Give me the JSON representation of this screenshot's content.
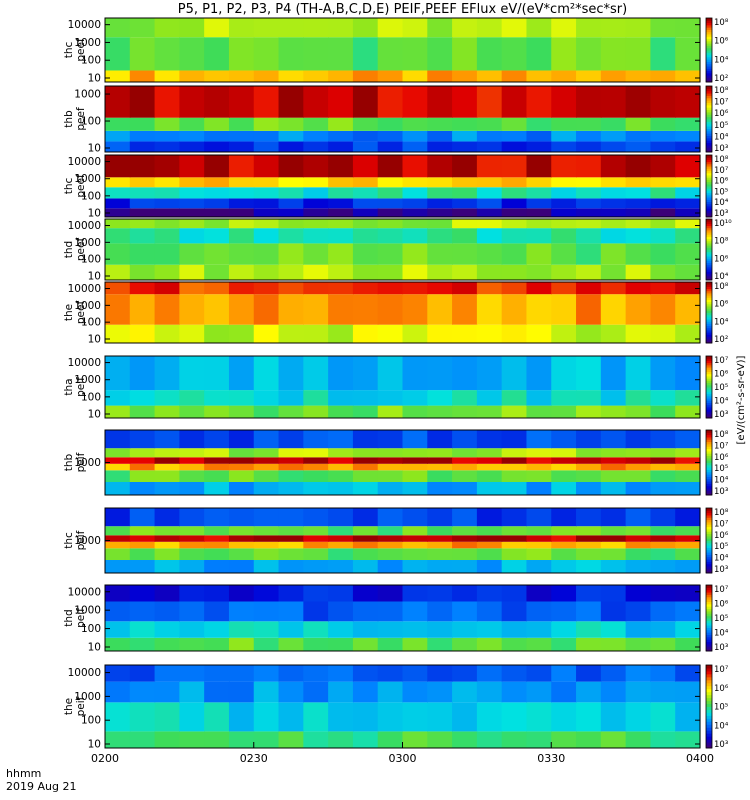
{
  "title": "P5, P1, P2, P3, P4 (TH-A,B,C,D,E) PEIF,PEEF EFlux eV/(eV*cm²*sec*sr)",
  "colorbar_unit_label": "[eV/(cm²-s-sr-eV)]",
  "footer": {
    "line1": "hhmm",
    "line2": "2019 Aug 21"
  },
  "chart_data": {
    "type": "heatmap",
    "colormap": "rainbow (purple-blue-cyan-green-yellow-red)",
    "x_axis": {
      "label": "hhmm",
      "date": "2019 Aug 21",
      "start": "0200",
      "end": "0400",
      "ticks": [
        "0200",
        "0230",
        "0300",
        "0330",
        "0400"
      ]
    },
    "panels": [
      {
        "name": "thc peef",
        "probe": "P2",
        "instrument": "peef",
        "yscale": "log",
        "yticks": [
          "10",
          "100",
          "1000",
          "10000"
        ],
        "cb_ticks": [
          "10²",
          "10⁴",
          "10⁶",
          "10⁸"
        ],
        "bands": [
          [
            0.0,
            0.18,
            0.78
          ],
          [
            0.18,
            0.7,
            0.55
          ],
          [
            0.7,
            1.0,
            0.62
          ]
        ]
      },
      {
        "name": "thb peef",
        "probe": "P1",
        "instrument": "peef",
        "yscale": "log",
        "yticks": [
          "10",
          "100",
          "1000"
        ],
        "cb_ticks": [
          "10³",
          "10⁴",
          "10⁵",
          "10⁶",
          "10⁷",
          "10⁸"
        ],
        "bands": [
          [
            0.0,
            0.16,
            0.2
          ],
          [
            0.16,
            0.32,
            0.3
          ],
          [
            0.32,
            0.52,
            0.55
          ],
          [
            0.52,
            1.0,
            0.95
          ]
        ]
      },
      {
        "name": "thc peef",
        "probe": "P2",
        "instrument": "peef",
        "yscale": "log",
        "yticks": [
          "10",
          "100",
          "1000",
          "10000"
        ],
        "cb_ticks": [
          "10³",
          "10⁴",
          "10⁵",
          "10⁶",
          "10⁷",
          "10⁸"
        ],
        "bands": [
          [
            0.0,
            0.14,
            0.05
          ],
          [
            0.14,
            0.3,
            0.18
          ],
          [
            0.3,
            0.48,
            0.45
          ],
          [
            0.48,
            0.64,
            0.75
          ],
          [
            0.64,
            1.0,
            0.96
          ]
        ]
      },
      {
        "name": "thd peef",
        "probe": "P3",
        "instrument": "peef",
        "yscale": "log",
        "yticks": [
          "10",
          "100",
          "1000",
          "10000"
        ],
        "cb_ticks": [
          "10⁴",
          "10⁶",
          "10⁸",
          "10¹⁰"
        ],
        "bands": [
          [
            0.0,
            0.25,
            0.62
          ],
          [
            0.25,
            0.6,
            0.55
          ],
          [
            0.6,
            0.85,
            0.46
          ],
          [
            0.85,
            1.0,
            0.62
          ]
        ]
      },
      {
        "name": "the peef",
        "probe": "P4",
        "instrument": "peef",
        "yscale": "log",
        "yticks": [
          "10",
          "100",
          "1000",
          "10000"
        ],
        "cb_ticks": [
          "10²",
          "10⁴",
          "10⁶",
          "10⁸"
        ],
        "bands": [
          [
            0.0,
            0.3,
            0.66
          ],
          [
            0.3,
            0.8,
            0.8
          ],
          [
            0.8,
            1.0,
            0.9
          ]
        ]
      },
      {
        "name": "tha peif",
        "probe": "P5",
        "instrument": "peif",
        "yscale": "log",
        "yticks": [
          "10",
          "100",
          "1000",
          "10000"
        ],
        "cb_ticks": [
          "10³",
          "10⁴",
          "10⁵",
          "10⁶",
          "10⁷"
        ],
        "bands": [
          [
            0.0,
            0.2,
            0.57
          ],
          [
            0.2,
            0.45,
            0.42
          ],
          [
            0.45,
            1.0,
            0.36
          ]
        ]
      },
      {
        "name": "thb peif",
        "probe": "P1",
        "instrument": "peif",
        "yscale": "log",
        "yticks": [
          "1000"
        ],
        "cb_ticks": [
          "10³",
          "10⁴",
          "10⁵",
          "10⁶",
          "10⁷",
          "10⁸"
        ],
        "bands": [
          [
            0.0,
            0.2,
            0.35
          ],
          [
            0.2,
            0.38,
            0.55
          ],
          [
            0.38,
            0.48,
            0.8
          ],
          [
            0.48,
            0.58,
            0.97
          ],
          [
            0.58,
            0.72,
            0.62
          ],
          [
            0.72,
            1.0,
            0.22
          ]
        ]
      },
      {
        "name": "thc peif",
        "probe": "P2",
        "instrument": "peif",
        "yscale": "log",
        "yticks": [
          "1000"
        ],
        "cb_ticks": [
          "10³",
          "10⁴",
          "10⁵",
          "10⁶",
          "10⁷",
          "10⁸"
        ],
        "bands": [
          [
            0.0,
            0.2,
            0.35
          ],
          [
            0.2,
            0.38,
            0.55
          ],
          [
            0.38,
            0.48,
            0.8
          ],
          [
            0.48,
            0.58,
            0.97
          ],
          [
            0.58,
            0.72,
            0.55
          ],
          [
            0.72,
            1.0,
            0.2
          ]
        ]
      },
      {
        "name": "thd peif",
        "probe": "P3",
        "instrument": "peif",
        "yscale": "log",
        "yticks": [
          "10",
          "100",
          "1000",
          "10000"
        ],
        "cb_ticks": [
          "10³",
          "10⁴",
          "10⁵",
          "10⁶",
          "10⁷"
        ],
        "bands": [
          [
            0.0,
            0.2,
            0.55
          ],
          [
            0.2,
            0.45,
            0.4
          ],
          [
            0.45,
            0.75,
            0.25
          ],
          [
            0.75,
            1.0,
            0.15
          ]
        ]
      },
      {
        "name": "the peif",
        "probe": "P4",
        "instrument": "peif",
        "yscale": "log",
        "yticks": [
          "10",
          "100",
          "1000",
          "10000"
        ],
        "cb_ticks": [
          "10³",
          "10⁴",
          "10⁵",
          "10⁶",
          "10⁷"
        ],
        "bands": [
          [
            0.0,
            0.2,
            0.52
          ],
          [
            0.2,
            0.55,
            0.4
          ],
          [
            0.55,
            0.8,
            0.32
          ],
          [
            0.8,
            1.0,
            0.25
          ]
        ]
      }
    ]
  }
}
